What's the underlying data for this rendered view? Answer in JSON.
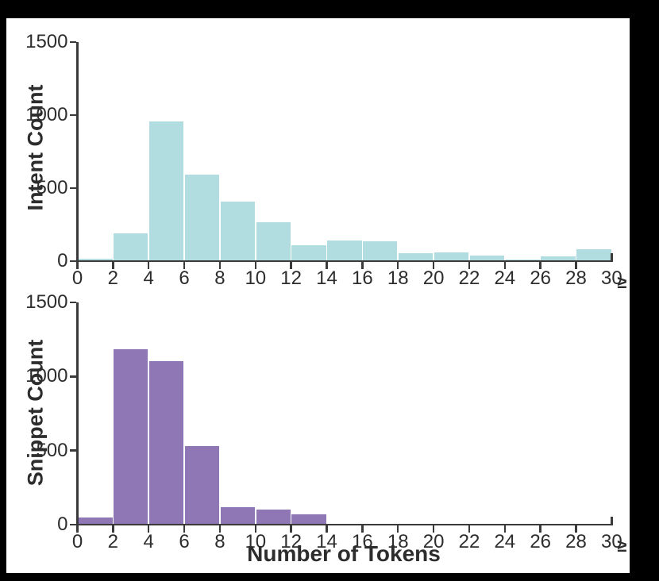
{
  "figure": {
    "background_color": "#000000",
    "canvas_color": "#ffffff",
    "axis_color": "#3a3a3a",
    "text_color": "#2d2d2d"
  },
  "chart_data": [
    {
      "type": "bar",
      "title": "",
      "ylabel": "Intent Count",
      "xlabel": "",
      "x_overflow_symbol": "≥",
      "bin_width": 2,
      "xlim": [
        0,
        30
      ],
      "ylim": [
        0,
        1500
      ],
      "grid": false,
      "legend": "none",
      "bar_color": "#b2dde0",
      "x_tick_labels": [
        "0",
        "2",
        "4",
        "6",
        "8",
        "10",
        "12",
        "14",
        "16",
        "18",
        "20",
        "22",
        "24",
        "26",
        "28",
        "30"
      ],
      "x_tick_values": [
        0,
        2,
        4,
        6,
        8,
        10,
        12,
        14,
        16,
        18,
        20,
        22,
        24,
        26,
        28,
        30
      ],
      "y_tick_labels": [
        "0",
        "500",
        "1000",
        "1500"
      ],
      "y_tick_values": [
        0,
        500,
        1000,
        1500
      ],
      "bins_start": [
        0,
        2,
        4,
        6,
        8,
        10,
        12,
        14,
        16,
        18,
        20,
        22,
        24,
        26,
        28
      ],
      "values": [
        15,
        190,
        955,
        590,
        405,
        265,
        110,
        140,
        135,
        52,
        62,
        40,
        13,
        30,
        83
      ]
    },
    {
      "type": "bar",
      "title": "",
      "ylabel": "Snippet Count",
      "xlabel": "Number of Tokens",
      "x_overflow_symbol": "≥",
      "bin_width": 2,
      "xlim": [
        0,
        30
      ],
      "ylim": [
        0,
        1500
      ],
      "grid": false,
      "legend": "none",
      "bar_color": "#8f76b5",
      "x_tick_labels": [
        "0",
        "2",
        "4",
        "6",
        "8",
        "10",
        "12",
        "14",
        "16",
        "18",
        "20",
        "22",
        "24",
        "26",
        "28",
        "30"
      ],
      "x_tick_values": [
        0,
        2,
        4,
        6,
        8,
        10,
        12,
        14,
        16,
        18,
        20,
        22,
        24,
        26,
        28,
        30
      ],
      "y_tick_labels": [
        "0",
        "500",
        "1000",
        "1500"
      ],
      "y_tick_values": [
        0,
        500,
        1000,
        1500
      ],
      "bins_start": [
        0,
        2,
        4,
        6,
        8,
        10,
        12,
        14,
        16,
        18,
        20,
        22,
        24,
        26,
        28
      ],
      "values": [
        50,
        1185,
        1105,
        530,
        120,
        100,
        70,
        0,
        0,
        0,
        0,
        0,
        0,
        0,
        0
      ]
    }
  ]
}
